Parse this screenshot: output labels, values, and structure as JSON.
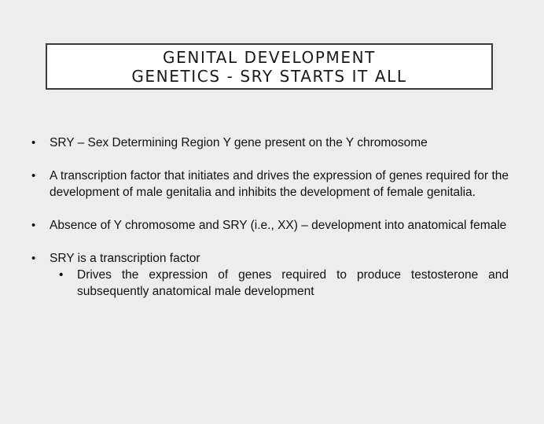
{
  "slide": {
    "title_line1": "GENITAL DEVELOPMENT",
    "title_line2": "GENETICS - SRY STARTS IT ALL",
    "bullet_glyph": "•",
    "bullets": [
      {
        "text": "SRY – Sex Determining Region Y gene present on the Y chromosome"
      },
      {
        "text": "A transcription factor that initiates and drives the expression of genes required for the development of male genitalia and inhibits the development of female genitalia."
      },
      {
        "text": "Absence of Y chromosome and SRY (i.e., XX) – development into anatomical female"
      },
      {
        "text": "SRY is a transcription factor",
        "sub": [
          {
            "text": "Drives the expression of genes required to produce testosterone and subsequently anatomical male development"
          }
        ]
      }
    ]
  }
}
